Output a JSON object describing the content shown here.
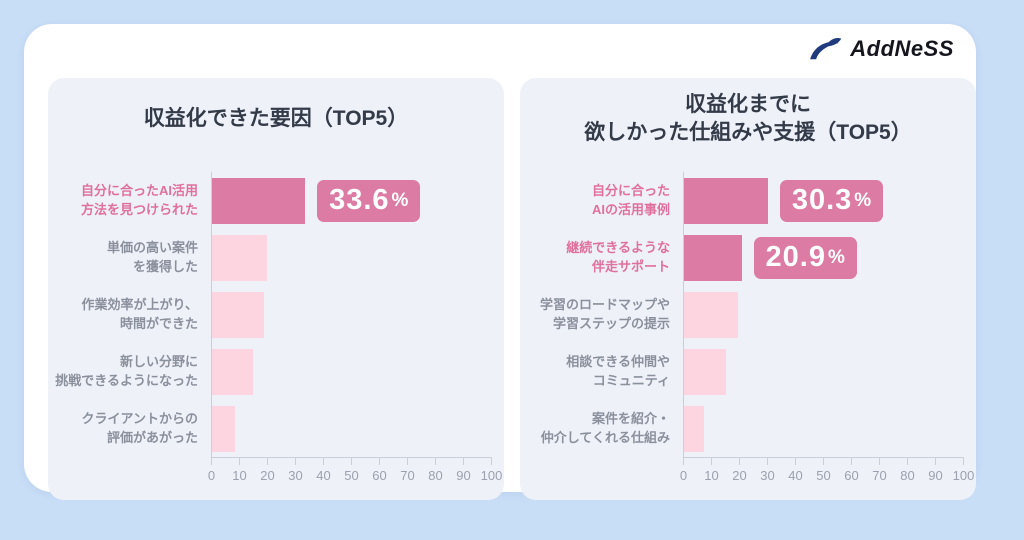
{
  "logo": {
    "icon": "pen-swoosh-icon",
    "text": "AddNeSS"
  },
  "colors": {
    "outer_bg": "#C8DDF6",
    "card_bg": "#FFFFFF",
    "panel_bg": "#EEF1F8",
    "bar_strong": "#DC7BA3",
    "bar_soft": "#FCD5E1",
    "badge_bg": "#DC7BA3",
    "badge_text": "#FFFFFF",
    "label_default": "#8B909D",
    "label_highlight": "#E0709E",
    "title_color": "#333A48",
    "axis_color": "#C9CEDA",
    "tick_color": "#9BA1AE",
    "logo_navy": "#1F3A7D"
  },
  "chart_data": [
    {
      "type": "bar",
      "orientation": "horizontal",
      "title": "収益化できた要因（TOP5）",
      "title_lines": [
        "収益化できた要因（TOP5）"
      ],
      "xlim": [
        0,
        100
      ],
      "ticks": [
        0,
        10,
        20,
        30,
        40,
        50,
        60,
        70,
        80,
        90,
        100
      ],
      "grid": false,
      "categories": [
        [
          "自分に合ったAI活用",
          "方法を見つけられた"
        ],
        [
          "単価の高い案件",
          "を獲得した"
        ],
        [
          "作業効率が上がり、",
          "時間ができた"
        ],
        [
          "新しい分野に",
          "挑戦できるようになった"
        ],
        [
          "クライアントからの",
          "評価があがった"
        ]
      ],
      "values": [
        33.6,
        20,
        19,
        15,
        8.5
      ],
      "value_labels": [
        "33.6%",
        "",
        "",
        "",
        ""
      ],
      "highlighted": [
        true,
        false,
        false,
        false,
        false
      ]
    },
    {
      "type": "bar",
      "orientation": "horizontal",
      "title": "収益化までに\n欲しかった仕組みや支援（TOP5）",
      "title_lines": [
        "収益化までに",
        "欲しかった仕組みや支援（TOP5）"
      ],
      "xlim": [
        0,
        100
      ],
      "ticks": [
        0,
        10,
        20,
        30,
        40,
        50,
        60,
        70,
        80,
        90,
        100
      ],
      "grid": false,
      "categories": [
        [
          "自分に合った",
          "AIの活用事例"
        ],
        [
          "継続できるような",
          "伴走サポート"
        ],
        [
          "学習のロードマップや",
          "学習ステップの提示"
        ],
        [
          "相談できる仲間や",
          "コミュニティ"
        ],
        [
          "案件を紹介・",
          "仲介してくれる仕組み"
        ]
      ],
      "values": [
        30.3,
        20.9,
        19.5,
        15.5,
        7.5
      ],
      "value_labels": [
        "30.3%",
        "20.9%",
        "",
        "",
        ""
      ],
      "highlighted": [
        true,
        true,
        false,
        false,
        false
      ]
    }
  ]
}
